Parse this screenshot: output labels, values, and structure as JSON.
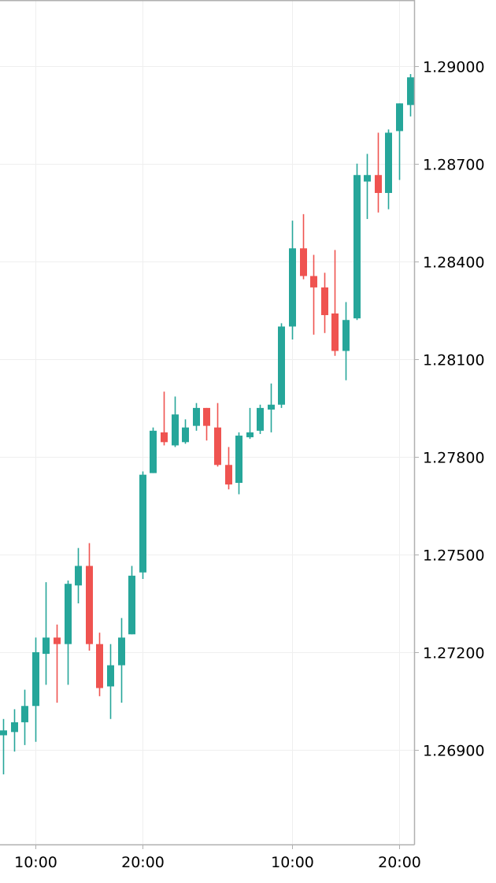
{
  "chart_data": {
    "type": "candlestick",
    "y_axis": {
      "ticks": [
        "1.26900",
        "1.27200",
        "1.27500",
        "1.27800",
        "1.28100",
        "1.28400",
        "1.28700",
        "1.29000"
      ],
      "tick_values": [
        1.269,
        1.272,
        1.275,
        1.278,
        1.281,
        1.284,
        1.287,
        1.29
      ],
      "range": [
        1.2661,
        1.292
      ],
      "position": "right"
    },
    "x_axis": {
      "ticks": [
        "10:00",
        "20:00",
        "10:00",
        "20:00"
      ],
      "tick_candle_index": [
        3,
        13,
        27,
        37
      ],
      "range_candle_index": [
        -0.3,
        38.4
      ]
    },
    "grid": true,
    "colors": {
      "up": "#26a69a",
      "down": "#ef5350",
      "grid": "#efefef",
      "axis": "#b0b0b0",
      "text": "#000000"
    },
    "candles": [
      {
        "o": 1.26945,
        "h": 1.26995,
        "l": 1.26825,
        "c": 1.2696
      },
      {
        "o": 1.26955,
        "h": 1.27025,
        "l": 1.26895,
        "c": 1.26985
      },
      {
        "o": 1.26985,
        "h": 1.27085,
        "l": 1.26915,
        "c": 1.27035
      },
      {
        "o": 1.27035,
        "h": 1.27245,
        "l": 1.26925,
        "c": 1.272
      },
      {
        "o": 1.27195,
        "h": 1.27415,
        "l": 1.271,
        "c": 1.27245
      },
      {
        "o": 1.27245,
        "h": 1.27285,
        "l": 1.27045,
        "c": 1.27225
      },
      {
        "o": 1.27225,
        "h": 1.2742,
        "l": 1.271,
        "c": 1.2741
      },
      {
        "o": 1.27405,
        "h": 1.2752,
        "l": 1.2735,
        "c": 1.27465
      },
      {
        "o": 1.27465,
        "h": 1.27535,
        "l": 1.27205,
        "c": 1.27225
      },
      {
        "o": 1.27225,
        "h": 1.2726,
        "l": 1.27065,
        "c": 1.2709
      },
      {
        "o": 1.27095,
        "h": 1.27225,
        "l": 1.26995,
        "c": 1.2716
      },
      {
        "o": 1.2716,
        "h": 1.27305,
        "l": 1.27045,
        "c": 1.27245
      },
      {
        "o": 1.27255,
        "h": 1.27465,
        "l": 1.27255,
        "c": 1.27435
      },
      {
        "o": 1.27445,
        "h": 1.27755,
        "l": 1.27425,
        "c": 1.27745
      },
      {
        "o": 1.2775,
        "h": 1.2789,
        "l": 1.2775,
        "c": 1.2788
      },
      {
        "o": 1.27875,
        "h": 1.28,
        "l": 1.27835,
        "c": 1.27845
      },
      {
        "o": 1.27835,
        "h": 1.27985,
        "l": 1.2783,
        "c": 1.2793
      },
      {
        "o": 1.27845,
        "h": 1.27915,
        "l": 1.2784,
        "c": 1.2789
      },
      {
        "o": 1.27895,
        "h": 1.27965,
        "l": 1.2788,
        "c": 1.2795
      },
      {
        "o": 1.2795,
        "h": 1.2795,
        "l": 1.2785,
        "c": 1.27895
      },
      {
        "o": 1.2789,
        "h": 1.27965,
        "l": 1.2777,
        "c": 1.27775
      },
      {
        "o": 1.27775,
        "h": 1.2783,
        "l": 1.277,
        "c": 1.27715
      },
      {
        "o": 1.2772,
        "h": 1.27875,
        "l": 1.27685,
        "c": 1.27865
      },
      {
        "o": 1.2786,
        "h": 1.2795,
        "l": 1.27855,
        "c": 1.27875
      },
      {
        "o": 1.2788,
        "h": 1.2796,
        "l": 1.2787,
        "c": 1.2795
      },
      {
        "o": 1.27945,
        "h": 1.28025,
        "l": 1.27875,
        "c": 1.2796
      },
      {
        "o": 1.2796,
        "h": 1.2821,
        "l": 1.2795,
        "c": 1.282
      },
      {
        "o": 1.282,
        "h": 1.28525,
        "l": 1.2816,
        "c": 1.2844
      },
      {
        "o": 1.2844,
        "h": 1.28545,
        "l": 1.28345,
        "c": 1.28355
      },
      {
        "o": 1.28355,
        "h": 1.2842,
        "l": 1.28175,
        "c": 1.2832
      },
      {
        "o": 1.2832,
        "h": 1.28365,
        "l": 1.2818,
        "c": 1.28235
      },
      {
        "o": 1.2824,
        "h": 1.28435,
        "l": 1.2811,
        "c": 1.28125
      },
      {
        "o": 1.28125,
        "h": 1.28275,
        "l": 1.28035,
        "c": 1.2822
      },
      {
        "o": 1.28225,
        "h": 1.287,
        "l": 1.2822,
        "c": 1.28665
      },
      {
        "o": 1.28645,
        "h": 1.2873,
        "l": 1.2853,
        "c": 1.28665
      },
      {
        "o": 1.28665,
        "h": 1.28795,
        "l": 1.2855,
        "c": 1.2861
      },
      {
        "o": 1.2861,
        "h": 1.28805,
        "l": 1.2856,
        "c": 1.28795
      },
      {
        "o": 1.288,
        "h": 1.28885,
        "l": 1.2865,
        "c": 1.28885
      },
      {
        "o": 1.2888,
        "h": 1.28975,
        "l": 1.28845,
        "c": 1.28965
      }
    ]
  }
}
